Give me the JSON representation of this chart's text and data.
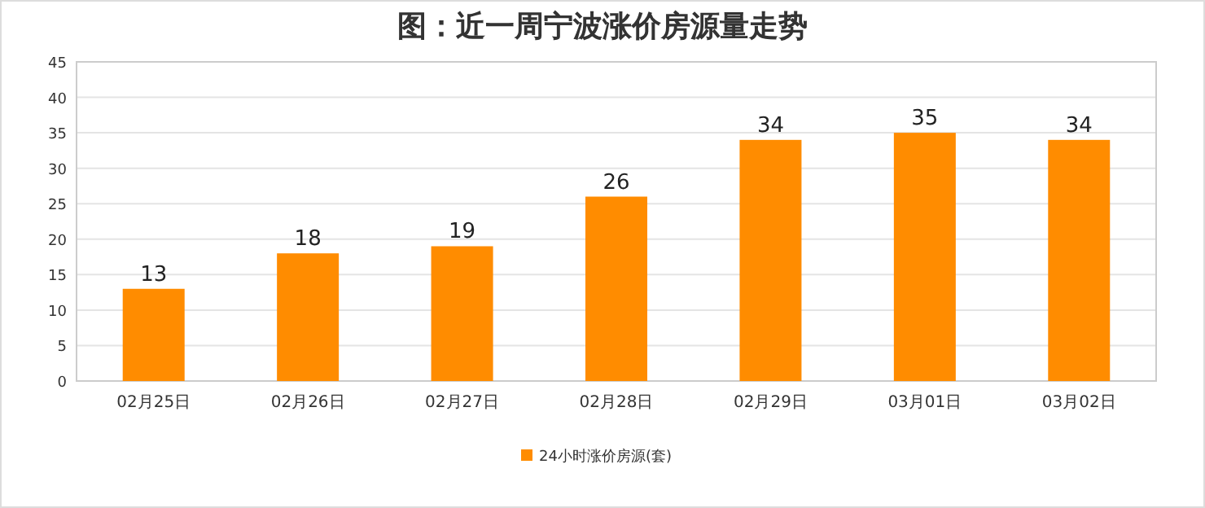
{
  "chart_data": {
    "type": "bar",
    "title": "图：近一周宁波涨价房源量走势",
    "categories": [
      "02月25日",
      "02月26日",
      "02月27日",
      "02月28日",
      "02月29日",
      "03月01日",
      "03月02日"
    ],
    "series": [
      {
        "name": "24小时涨价房源(套)",
        "color": "#ff8c00",
        "values": [
          13,
          18,
          19,
          26,
          34,
          35,
          34
        ]
      }
    ],
    "ylim": [
      0,
      45
    ],
    "yticks": [
      0,
      5,
      10,
      15,
      20,
      25,
      30,
      35,
      40,
      45
    ],
    "grid": "y",
    "legend": "bottom",
    "data_labels": true
  }
}
